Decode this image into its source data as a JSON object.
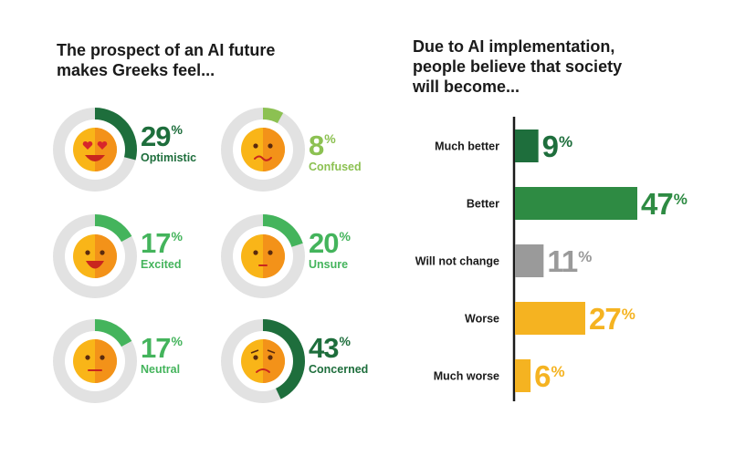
{
  "left_title": {
    "line1": "The prospect of an AI future",
    "line2": "makes Greeks feel..."
  },
  "right_title": {
    "line1": "Due to AI implementation,",
    "line2": "people believe that society",
    "line3": "will become..."
  },
  "colors": {
    "dark_green": "#1e6e3c",
    "light_green": "#44b45c",
    "lime_green": "#8cc152",
    "gray": "#9a9a9a",
    "yellow": "#f5b321",
    "ring": "#e2e2e2",
    "face": "#f9b518",
    "face_shade": "#f39219"
  },
  "chart_data": [
    {
      "type": "pie",
      "title": "The prospect of an AI future makes Greeks feel...",
      "unit": "%",
      "items": [
        {
          "label": "Optimistic",
          "value": 29,
          "color": "#1e6e3c",
          "face": "heart-eyes-icon"
        },
        {
          "label": "Confused",
          "value": 8,
          "color": "#8cc152",
          "face": "confused-face-icon"
        },
        {
          "label": "Excited",
          "value": 17,
          "color": "#44b45c",
          "face": "excited-face-icon"
        },
        {
          "label": "Unsure",
          "value": 20,
          "color": "#44b45c",
          "face": "unsure-face-icon"
        },
        {
          "label": "Neutral",
          "value": 17,
          "color": "#44b45c",
          "face": "neutral-face-icon"
        },
        {
          "label": "Concerned",
          "value": 43,
          "color": "#1e6e3c",
          "face": "concerned-face-icon"
        }
      ]
    },
    {
      "type": "bar",
      "orientation": "horizontal",
      "title": "Due to AI implementation, people believe that society will become...",
      "unit": "%",
      "xlim": [
        0,
        47
      ],
      "categories": [
        "Much better",
        "Better",
        "Will not change",
        "Worse",
        "Much worse"
      ],
      "values": [
        9,
        47,
        11,
        27,
        6
      ],
      "colors": [
        "#1e6e3c",
        "#2e8b43",
        "#9a9a9a",
        "#f5b321",
        "#f5b321"
      ]
    }
  ]
}
